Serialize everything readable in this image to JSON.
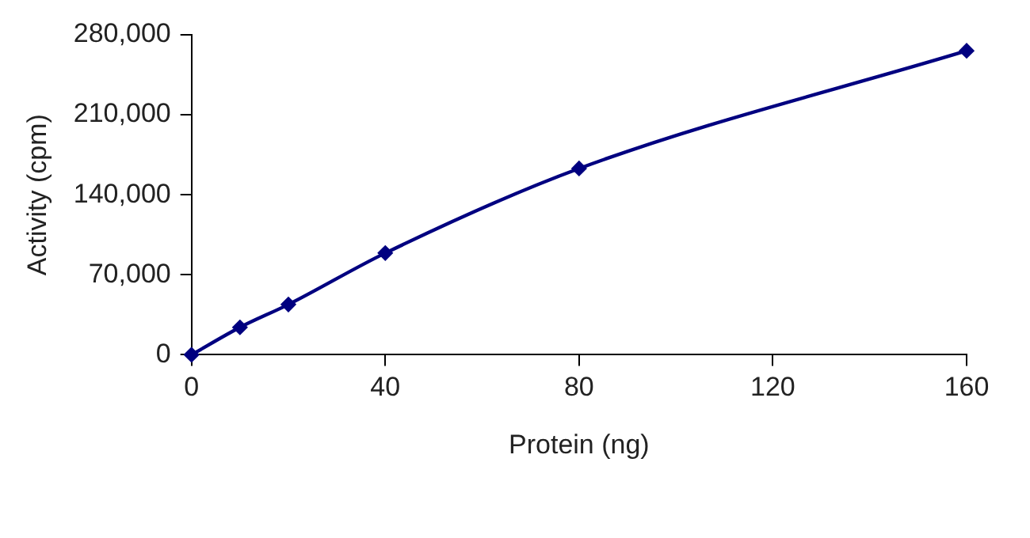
{
  "chart_data": {
    "type": "line",
    "xlabel": "Protein (ng)",
    "ylabel": "Activity (cpm)",
    "x": [
      0,
      10,
      20,
      40,
      80,
      160
    ],
    "series": [
      {
        "color": "#000080",
        "values": [
          0,
          24000,
          44000,
          89000,
          163000,
          266000
        ]
      }
    ],
    "xlim": [
      0,
      160
    ],
    "xticks": [
      0,
      40,
      80,
      120,
      160
    ],
    "ylim": [
      0,
      280000
    ],
    "yticks": [
      0,
      {
        "value": 70000,
        "label": "70,000"
      },
      {
        "value": 140000,
        "label": "140,000"
      },
      {
        "value": 210000,
        "label": "210,000"
      },
      {
        "value": 280000,
        "label": "280,000"
      }
    ],
    "grid": false,
    "legend": false,
    "marker": "diamond",
    "line_style": "solid"
  }
}
